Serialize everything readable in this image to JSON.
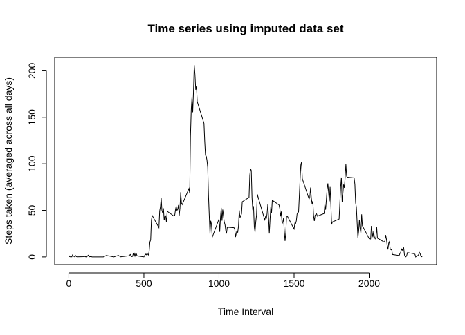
{
  "chart_data": {
    "type": "line",
    "title": "Time series using imputed data set",
    "x_label": "Time Interval",
    "y_label": "Steps taken (averaged across all days)",
    "color": "#000000",
    "xlim": [
      -94.2,
      2449.2
    ],
    "xticks": [
      0,
      500,
      1000,
      1500,
      2000
    ],
    "ylim": [
      -8.25,
      214.42
    ],
    "yticks": [
      0,
      50,
      100,
      150,
      200
    ],
    "x": [
      0,
      5,
      10,
      15,
      20,
      25,
      30,
      35,
      40,
      45,
      50,
      55,
      100,
      105,
      110,
      115,
      120,
      125,
      130,
      135,
      140,
      145,
      150,
      155,
      200,
      230,
      250,
      300,
      330,
      345,
      400,
      410,
      415,
      420,
      425,
      430,
      435,
      440,
      445,
      450,
      455,
      500,
      505,
      510,
      515,
      520,
      525,
      530,
      535,
      540,
      545,
      550,
      555,
      600,
      605,
      610,
      615,
      620,
      625,
      630,
      635,
      640,
      645,
      650,
      655,
      700,
      705,
      710,
      715,
      720,
      725,
      730,
      735,
      740,
      745,
      750,
      755,
      800,
      805,
      810,
      815,
      820,
      825,
      830,
      835,
      840,
      845,
      850,
      855,
      900,
      905,
      910,
      915,
      920,
      925,
      930,
      935,
      940,
      945,
      950,
      955,
      1000,
      1005,
      1010,
      1015,
      1020,
      1025,
      1030,
      1035,
      1040,
      1045,
      1050,
      1055,
      1100,
      1105,
      1110,
      1115,
      1120,
      1125,
      1130,
      1135,
      1140,
      1145,
      1150,
      1155,
      1200,
      1205,
      1210,
      1215,
      1220,
      1225,
      1230,
      1235,
      1240,
      1245,
      1250,
      1255,
      1300,
      1305,
      1310,
      1315,
      1320,
      1325,
      1330,
      1335,
      1340,
      1345,
      1350,
      1355,
      1400,
      1405,
      1410,
      1415,
      1420,
      1425,
      1430,
      1435,
      1440,
      1445,
      1450,
      1455,
      1500,
      1505,
      1510,
      1515,
      1520,
      1525,
      1530,
      1535,
      1540,
      1545,
      1550,
      1555,
      1600,
      1605,
      1610,
      1615,
      1620,
      1625,
      1630,
      1635,
      1640,
      1645,
      1650,
      1655,
      1700,
      1705,
      1710,
      1715,
      1720,
      1725,
      1730,
      1735,
      1740,
      1745,
      1750,
      1755,
      1800,
      1805,
      1810,
      1815,
      1820,
      1825,
      1830,
      1835,
      1840,
      1845,
      1850,
      1855,
      1900,
      1905,
      1910,
      1915,
      1920,
      1925,
      1930,
      1935,
      1940,
      1945,
      1950,
      1955,
      2000,
      2005,
      2010,
      2015,
      2020,
      2025,
      2030,
      2035,
      2040,
      2045,
      2050,
      2055,
      2100,
      2105,
      2110,
      2115,
      2120,
      2125,
      2130,
      2135,
      2140,
      2145,
      2150,
      2155,
      2200,
      2205,
      2210,
      2215,
      2220,
      2225,
      2230,
      2235,
      2240,
      2245,
      2250,
      2255,
      2300,
      2305,
      2310,
      2315,
      2320,
      2325,
      2330,
      2335,
      2340,
      2345,
      2350,
      2355
    ],
    "values": [
      1.72,
      0.34,
      0.13,
      0.15,
      0.08,
      2.09,
      0.53,
      0.87,
      0,
      1.47,
      0.3,
      0.13,
      0.32,
      0.68,
      0.15,
      0.34,
      0,
      1.11,
      1.83,
      0.17,
      0.17,
      0.38,
      0.26,
      0,
      0,
      0,
      1.55,
      0,
      1.62,
      0.08,
      1.19,
      2.57,
      0.94,
      0.36,
      0.68,
      4.11,
      0.66,
      3.49,
      0.83,
      3.11,
      1.11,
      0,
      1.57,
      3,
      2.25,
      3.32,
      2.96,
      2.09,
      6.06,
      16,
      18.3,
      39.5,
      44.5,
      31.5,
      49.3,
      53.8,
      63.5,
      50,
      47.1,
      52.2,
      39.3,
      44,
      44.2,
      37.4,
      49,
      43.8,
      44.4,
      50.5,
      54.5,
      49.9,
      50.98,
      55.7,
      44.3,
      52.3,
      69.5,
      57.8,
      56.2,
      73.4,
      68.2,
      129.4,
      157.5,
      171.2,
      155.4,
      177.3,
      206.2,
      195.9,
      179.6,
      183.4,
      167,
      143.5,
      124,
      109.1,
      108.1,
      103.7,
      95.97,
      66.2,
      45.2,
      24.8,
      38.8,
      34.98,
      21.06,
      40.6,
      26.98,
      42.4,
      52.7,
      38.9,
      50.8,
      44.3,
      37.4,
      34.7,
      28.3,
      25.1,
      31.9,
      31.4,
      29.7,
      21.3,
      25.5,
      28.4,
      26.5,
      33.4,
      49.98,
      42,
      44.6,
      46,
      59.2,
      63.9,
      87.7,
      94.8,
      92.8,
      63.4,
      50.2,
      54.5,
      32.4,
      26.5,
      37.7,
      45.1,
      67.3,
      42.3,
      39.9,
      43.3,
      40.98,
      46.2,
      56.4,
      42.8,
      25.1,
      39.96,
      53.5,
      47.3,
      60.8,
      55.75,
      51.96,
      43.6,
      48.7,
      35.5,
      37.5,
      41.8,
      27.5,
      17.1,
      26.1,
      43.6,
      43.8,
      30,
      36.1,
      35.5,
      38.8,
      45.96,
      47.8,
      48.1,
      65.3,
      82.9,
      98.7,
      102.1,
      83.96,
      62.1,
      64.1,
      74.5,
      63.2,
      56.9,
      59.8,
      43.9,
      38.6,
      44.7,
      45.5,
      46.2,
      43.7,
      46.6,
      56.3,
      50.7,
      61.2,
      72.7,
      78.9,
      68.9,
      59.7,
      75.1,
      56.5,
      34.8,
      37.5,
      40.7,
      58,
      74.7,
      85.3,
      59.3,
      67.8,
      77.7,
      74.2,
      85.3,
      99.5,
      86.6,
      85.6,
      84.9,
      77.8,
      58,
      53.4,
      36.3,
      20.7,
      27.4,
      40,
      30.2,
      25.5,
      45.7,
      33.5,
      19.6,
      19,
      19.3,
      33.3,
      26.8,
      21.2,
      27.3,
      21.3,
      19.5,
      21.3,
      32.3,
      20.2,
      15.9,
      17.2,
      23.5,
      19.2,
      12.5,
      8,
      14.7,
      16.3,
      8.7,
      7.8,
      8.1,
      2.6,
      1.5,
      3.7,
      4.8,
      8.5,
      7.1,
      8.7,
      9.8,
      2.2,
      0.3,
      0.1,
      1.6,
      4.6,
      3.3,
      2.8,
      0,
      0.8,
      0.96,
      1.6,
      2.6,
      4.7,
      3.3,
      0.6,
      0.2,
      1.1
    ]
  }
}
